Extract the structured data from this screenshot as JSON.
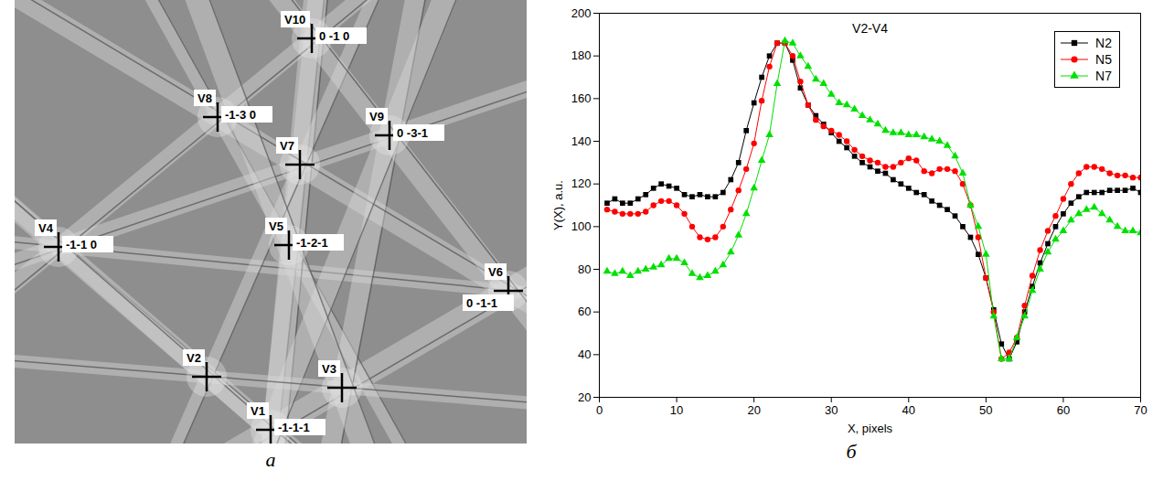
{
  "pattern": {
    "panel_label": "а",
    "markers": [
      {
        "name": "V10",
        "indices": "0 -1 0"
      },
      {
        "name": "V8",
        "indices": "-1-3 0"
      },
      {
        "name": "V9",
        "indices": "0 -3-1"
      },
      {
        "name": "V7"
      },
      {
        "name": "V4",
        "indices": "-1-1 0"
      },
      {
        "name": "V5",
        "indices": "-1-2-1"
      },
      {
        "name": "V6",
        "indices": "0 -1-1"
      },
      {
        "name": "V2"
      },
      {
        "name": "V3"
      },
      {
        "name": "V1",
        "indices": "-1-1-1"
      }
    ]
  },
  "chart_data": {
    "panel_label": "б",
    "type": "line",
    "title": "V2-V4",
    "x_label": "X, pixels",
    "y_label": "Y(X), a.u.",
    "xlim": [
      0,
      70
    ],
    "xticks": [
      0,
      10,
      20,
      30,
      40,
      50,
      60,
      70
    ],
    "ylim": [
      20,
      200
    ],
    "yticks": [
      20,
      40,
      60,
      80,
      100,
      120,
      140,
      160,
      180,
      200
    ],
    "legend": "top-right",
    "x": [
      1,
      2,
      3,
      4,
      5,
      6,
      7,
      8,
      9,
      10,
      11,
      12,
      13,
      14,
      15,
      16,
      17,
      18,
      19,
      20,
      21,
      22,
      23,
      24,
      25,
      26,
      27,
      28,
      29,
      30,
      31,
      32,
      33,
      34,
      35,
      36,
      37,
      38,
      39,
      40,
      41,
      42,
      43,
      44,
      45,
      46,
      47,
      48,
      49,
      50,
      51,
      52,
      53,
      54,
      55,
      56,
      57,
      58,
      59,
      60,
      61,
      62,
      63,
      64,
      65,
      66,
      67,
      68,
      69,
      70
    ],
    "series": [
      {
        "name": "N2",
        "color": "#000000",
        "marker": "square",
        "values": [
          111,
          113,
          111,
          111,
          113,
          115,
          118,
          120,
          119,
          118,
          115,
          114,
          115,
          114,
          114,
          116,
          122,
          130,
          145,
          158,
          170,
          180,
          186,
          186,
          178,
          165,
          157,
          152,
          148,
          144,
          140,
          137,
          133,
          130,
          128,
          126,
          125,
          122,
          120,
          118,
          116,
          115,
          112,
          110,
          108,
          105,
          100,
          95,
          87,
          76,
          61,
          45,
          38,
          46,
          60,
          72,
          83,
          92,
          100,
          106,
          111,
          114,
          116,
          116,
          116,
          117,
          117,
          117,
          118,
          116
        ]
      },
      {
        "name": "N5",
        "color": "#ff0000",
        "marker": "circle",
        "values": [
          108,
          107,
          106,
          106,
          106,
          107,
          110,
          112,
          112,
          110,
          106,
          100,
          95,
          94,
          95,
          100,
          108,
          117,
          127,
          139,
          159,
          175,
          186,
          186,
          180,
          168,
          157,
          150,
          147,
          145,
          143,
          140,
          136,
          133,
          131,
          130,
          128,
          128,
          130,
          132,
          131,
          126,
          125,
          127,
          127,
          126,
          120,
          110,
          95,
          76,
          60,
          38,
          41,
          48,
          63,
          77,
          89,
          98,
          105,
          113,
          120,
          125,
          128,
          128,
          127,
          125,
          124,
          124,
          123,
          123
        ]
      },
      {
        "name": "N7",
        "color": "#00e000",
        "marker": "triangle",
        "values": [
          79,
          78,
          79,
          77,
          79,
          80,
          81,
          82,
          85,
          85,
          83,
          78,
          76,
          77,
          79,
          82,
          88,
          96,
          106,
          118,
          131,
          143,
          167,
          187,
          186,
          180,
          175,
          169,
          167,
          162,
          158,
          157,
          155,
          152,
          150,
          148,
          145,
          144,
          144,
          143,
          143,
          142,
          141,
          140,
          138,
          133,
          125,
          110,
          100,
          87,
          58,
          38,
          38,
          48,
          58,
          70,
          80,
          88,
          94,
          98,
          103,
          106,
          108,
          109,
          106,
          103,
          100,
          98,
          98,
          97
        ]
      }
    ]
  }
}
